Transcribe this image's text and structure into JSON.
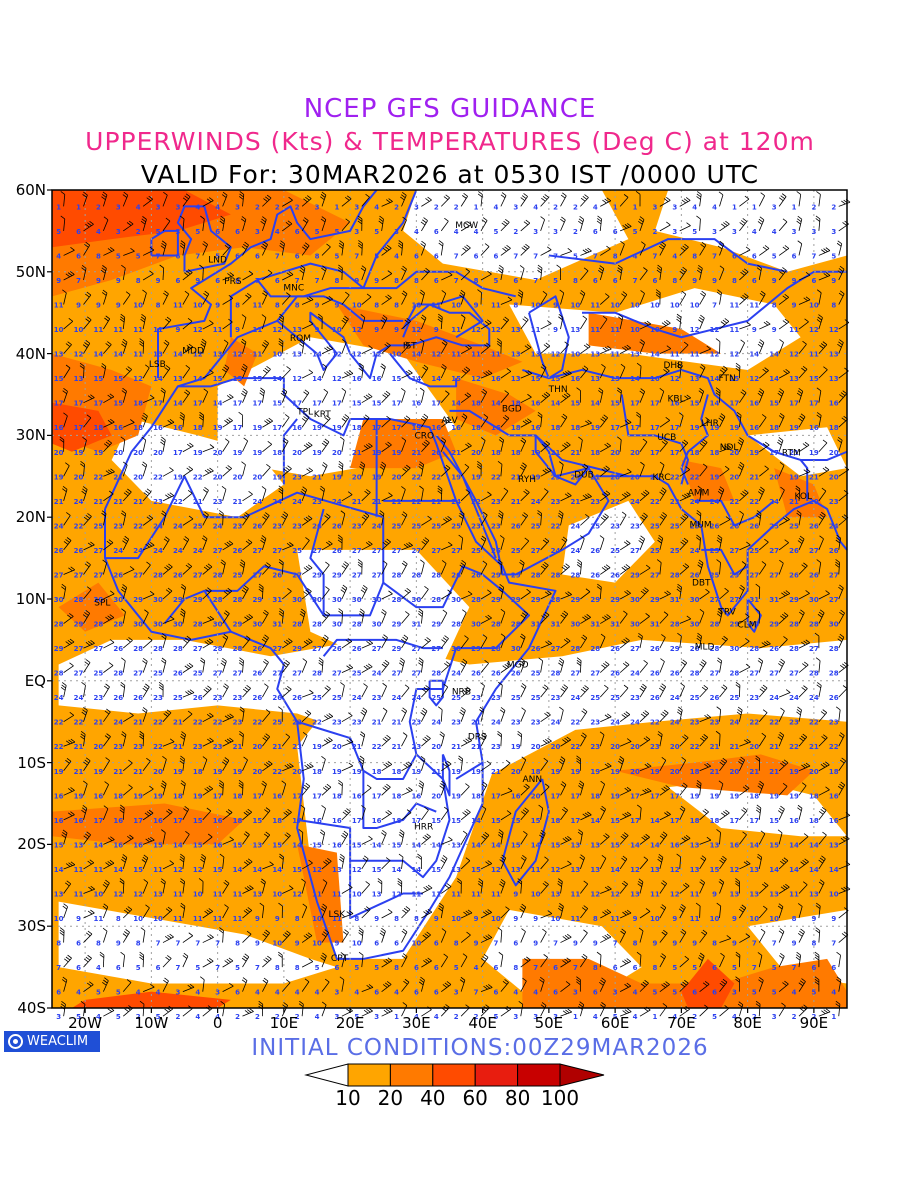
{
  "titles": {
    "line1": "NCEP GFS GUIDANCE",
    "line2": "UPPERWINDS (Kts) & TEMPERATURES (Deg C) at 120m",
    "line3": "VALID For: 30MAR2026 at 0530 IST /0000 UTC"
  },
  "lat_labels": [
    "60N",
    "50N",
    "40N",
    "30N",
    "20N",
    "10N",
    "EQ",
    "10S",
    "20S",
    "30S",
    "40S"
  ],
  "lon_labels": [
    "20W",
    "10W",
    "0",
    "10E",
    "20E",
    "30E",
    "40E",
    "50E",
    "60E",
    "70E",
    "80E",
    "90E"
  ],
  "stations": [
    {
      "code": "MCW",
      "lon": 37.6,
      "lat": 55.7
    },
    {
      "code": "LND",
      "lon": 0.0,
      "lat": 51.5
    },
    {
      "code": "PRS",
      "lon": 2.3,
      "lat": 48.9
    },
    {
      "code": "MNC",
      "lon": 11.5,
      "lat": 48.1
    },
    {
      "code": "ROM",
      "lon": 12.5,
      "lat": 41.9
    },
    {
      "code": "IST",
      "lon": 29.0,
      "lat": 41.0
    },
    {
      "code": "MDD",
      "lon": -3.7,
      "lat": 40.4
    },
    {
      "code": "LSB",
      "lon": -9.1,
      "lat": 38.7
    },
    {
      "code": "TPL",
      "lon": 13.2,
      "lat": 32.9
    },
    {
      "code": "KRT",
      "lon": 15.8,
      "lat": 32.6
    },
    {
      "code": "CRO",
      "lon": 31.2,
      "lat": 30.0
    },
    {
      "code": "ALV",
      "lon": 35.0,
      "lat": 31.9
    },
    {
      "code": "BGD",
      "lon": 44.4,
      "lat": 33.3
    },
    {
      "code": "THN",
      "lon": 51.4,
      "lat": 35.7
    },
    {
      "code": "DHB",
      "lon": 68.8,
      "lat": 38.6
    },
    {
      "code": "FTN",
      "lon": 76.9,
      "lat": 37.0
    },
    {
      "code": "KBL",
      "lon": 69.2,
      "lat": 34.5
    },
    {
      "code": "LHR",
      "lon": 74.3,
      "lat": 31.5
    },
    {
      "code": "UCB",
      "lon": 67.8,
      "lat": 29.8
    },
    {
      "code": "NDL",
      "lon": 77.2,
      "lat": 28.6
    },
    {
      "code": "RTM",
      "lon": 86.6,
      "lat": 27.9
    },
    {
      "code": "RYH",
      "lon": 46.7,
      "lat": 24.7
    },
    {
      "code": "DUB",
      "lon": 55.3,
      "lat": 25.2
    },
    {
      "code": "KRC",
      "lon": 67.0,
      "lat": 24.9
    },
    {
      "code": "AMM",
      "lon": 72.6,
      "lat": 23.0
    },
    {
      "code": "KOL",
      "lon": 88.4,
      "lat": 22.6
    },
    {
      "code": "MUM",
      "lon": 72.9,
      "lat": 19.1
    },
    {
      "code": "DBT",
      "lon": 73.0,
      "lat": 12.0
    },
    {
      "code": "TRV",
      "lon": 76.9,
      "lat": 8.5
    },
    {
      "code": "CLM",
      "lon": 79.9,
      "lat": 6.9
    },
    {
      "code": "MLD",
      "lon": 73.5,
      "lat": 4.2
    },
    {
      "code": "SPL",
      "lon": -17.4,
      "lat": 9.6
    },
    {
      "code": "MGD",
      "lon": 45.3,
      "lat": 2.0
    },
    {
      "code": "NRB",
      "lon": 36.8,
      "lat": -1.3
    },
    {
      "code": "DRS",
      "lon": 39.2,
      "lat": -6.8
    },
    {
      "code": "ANN",
      "lon": 47.5,
      "lat": -12.0
    },
    {
      "code": "HRR",
      "lon": 31.1,
      "lat": -17.8
    },
    {
      "code": "LSK",
      "lon": 18.0,
      "lat": -28.5
    },
    {
      "code": "CPT",
      "lon": 18.4,
      "lat": -33.9
    }
  ],
  "colors": {
    "under_10": "#ffffff",
    "10_20": "#ffa500",
    "20_40": "#ff7a00",
    "40_60": "#ff4b00",
    "60_80": "#e81d0f",
    "80_100": "#c80000",
    "over_100": "#b00000",
    "boundaries": "#2b40f0",
    "temperature_text": "#2b40f0"
  },
  "legend": {
    "ticks": [
      "10",
      "20",
      "40",
      "60",
      "80",
      "100"
    ]
  },
  "initial_conditions": "INITIAL CONDITIONS:00Z29MAR2026",
  "logo_text": "WEACLIM",
  "domain": {
    "lon_min": -25,
    "lon_max": 95,
    "lat_min": -40,
    "lat_max": 60
  }
}
